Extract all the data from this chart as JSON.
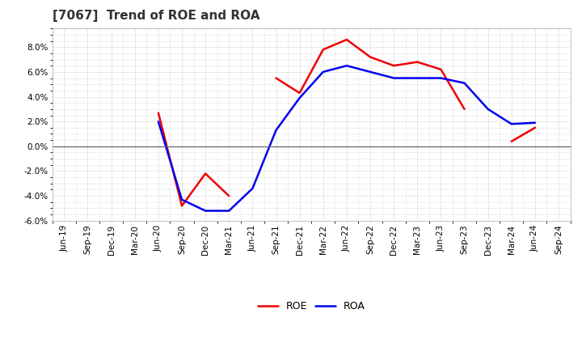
{
  "title": "[7067]  Trend of ROE and ROA",
  "x_labels": [
    "Jun-19",
    "Sep-19",
    "Dec-19",
    "Mar-20",
    "Jun-20",
    "Sep-20",
    "Dec-20",
    "Mar-21",
    "Jun-21",
    "Sep-21",
    "Dec-21",
    "Mar-22",
    "Jun-22",
    "Sep-22",
    "Dec-22",
    "Mar-23",
    "Jun-23",
    "Sep-23",
    "Dec-23",
    "Mar-24",
    "Jun-24",
    "Sep-24"
  ],
  "roe": [
    null,
    null,
    null,
    null,
    2.7,
    -4.8,
    -2.2,
    -4.0,
    null,
    5.5,
    4.3,
    7.8,
    8.6,
    7.2,
    6.5,
    6.8,
    6.2,
    3.0,
    null,
    0.4,
    1.5,
    null
  ],
  "roa": [
    null,
    null,
    null,
    null,
    2.0,
    -4.3,
    -5.2,
    -5.2,
    -3.4,
    1.3,
    3.9,
    6.0,
    6.5,
    6.0,
    5.5,
    5.5,
    5.5,
    5.1,
    3.0,
    1.8,
    1.9,
    null
  ],
  "roe_color": "#ee0000",
  "roa_color": "#0000ee",
  "ylim": [
    -6.0,
    9.5
  ],
  "yticks": [
    -6.0,
    -4.0,
    -2.0,
    0.0,
    2.0,
    4.0,
    6.0,
    8.0
  ],
  "plot_bg": "#ffffff",
  "fig_bg": "#ffffff",
  "grid_color": "#bbbbbb",
  "line_width": 1.8,
  "title_fontsize": 11,
  "tick_fontsize": 7.5,
  "legend_fontsize": 9
}
